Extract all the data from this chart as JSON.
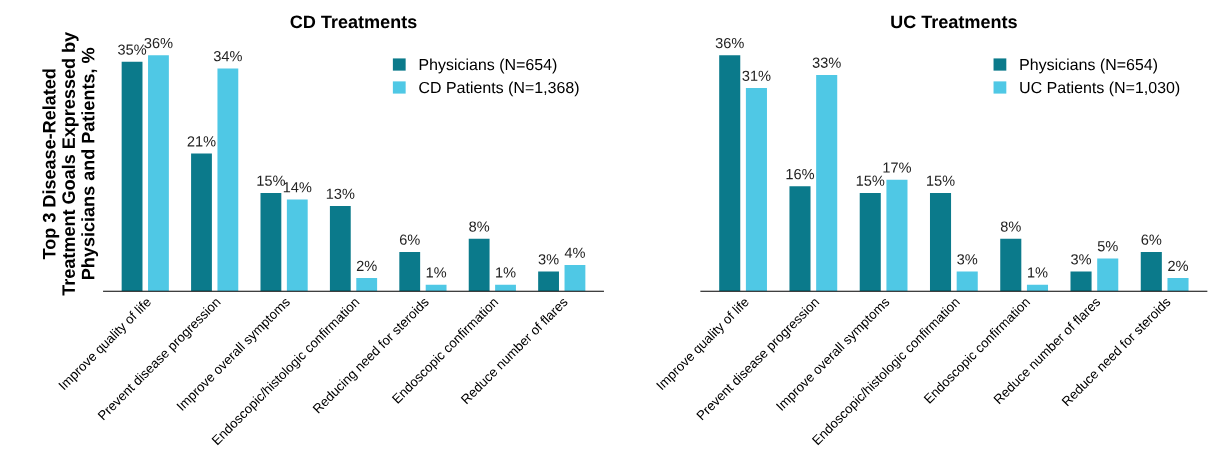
{
  "chart_data": [
    {
      "type": "bar",
      "title": "CD Treatments",
      "ylabel": "Top 3 Disease-Related\nTreatment Goals Expressed by\nPhysicians and Patients, %",
      "categories": [
        "Improve quality of life",
        "Prevent disease progression",
        "Improve overall symptoms",
        "Endoscopic/histologic confirmation",
        "Reducing need for steroids",
        "Endoscopic confirmation",
        "Reduce number of flares"
      ],
      "series": [
        {
          "name": "Physicians (N=654)",
          "color": "#0b7a8b",
          "values": [
            35,
            21,
            15,
            13,
            6,
            8,
            3
          ],
          "value_labels": [
            "35%",
            "21%",
            "15%",
            "13%",
            "6%",
            "8%",
            "3%"
          ]
        },
        {
          "name": "CD Patients (N=1,368)",
          "color": "#4fc8e5",
          "values": [
            36,
            34,
            14,
            2,
            1,
            1,
            4
          ],
          "value_labels": [
            "36%",
            "34%",
            "14%",
            "2%",
            "1%",
            "1%",
            "4%"
          ]
        }
      ],
      "legend": "top right",
      "tick_labels": "x",
      "grid": false
    },
    {
      "type": "bar",
      "title": "UC Treatments",
      "categories": [
        "Improve quality of life",
        "Prevent disease progression",
        "Improve overall symptoms",
        "Endoscopic/histologic confirmation",
        "Endoscopic confirmation",
        "Reduce number of flares",
        "Reduce need for steroids"
      ],
      "series": [
        {
          "name": "Physicians (N=654)",
          "color": "#0b7a8b",
          "values": [
            36,
            16,
            15,
            15,
            8,
            3,
            6
          ],
          "value_labels": [
            "36%",
            "16%",
            "15%",
            "15%",
            "8%",
            "3%",
            "6%"
          ]
        },
        {
          "name": "UC Patients (N=1,030)",
          "color": "#4fc8e5",
          "values": [
            31,
            33,
            17,
            3,
            1,
            5,
            2
          ],
          "value_labels": [
            "31%",
            "33%",
            "17%",
            "3%",
            "1%",
            "5%",
            "2%"
          ]
        }
      ],
      "legend": "top right",
      "tick_labels": "x",
      "grid": false
    }
  ]
}
